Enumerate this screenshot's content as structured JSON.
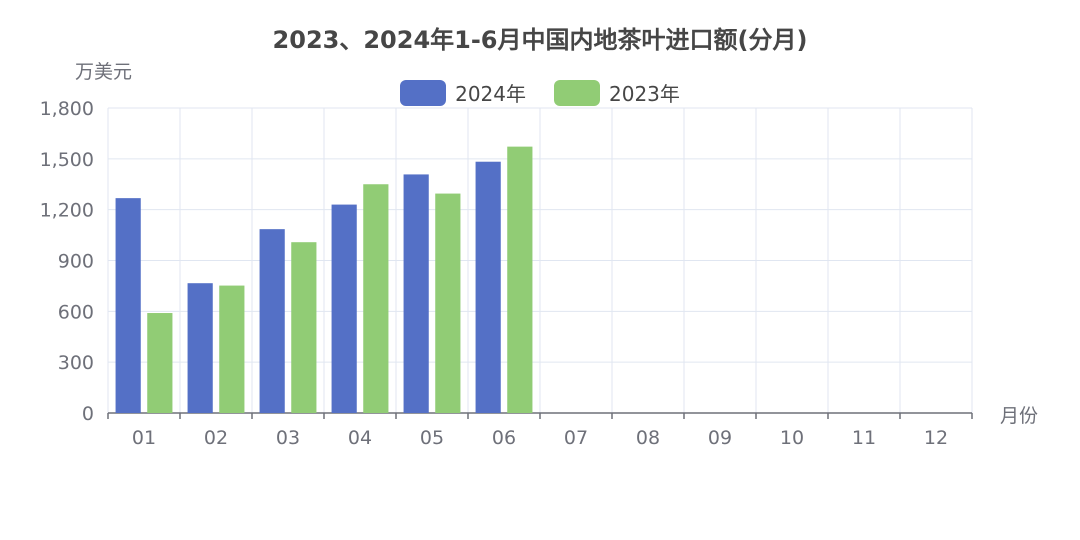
{
  "chart_data": {
    "type": "bar",
    "title": "2023、2024年1-6月中国内地茶叶进口额(分月)",
    "ylabel": "万美元",
    "xlabel": "月份",
    "categories": [
      "01",
      "02",
      "03",
      "04",
      "05",
      "06",
      "07",
      "08",
      "09",
      "10",
      "11",
      "12"
    ],
    "ylim": [
      0,
      1800
    ],
    "yticks": [
      "0",
      "300",
      "600",
      "900",
      "1,200",
      "1,500",
      "1,800"
    ],
    "grid": true,
    "legend_position": "top-center",
    "series": [
      {
        "name": "2024年",
        "color": "#5470c6",
        "values": [
          1268,
          766,
          1085,
          1230,
          1408,
          1483,
          null,
          null,
          null,
          null,
          null,
          null
        ]
      },
      {
        "name": "2023年",
        "color": "#91cc75",
        "values": [
          590,
          752,
          1008,
          1350,
          1295,
          1572,
          null,
          null,
          null,
          null,
          null,
          null
        ]
      }
    ]
  }
}
